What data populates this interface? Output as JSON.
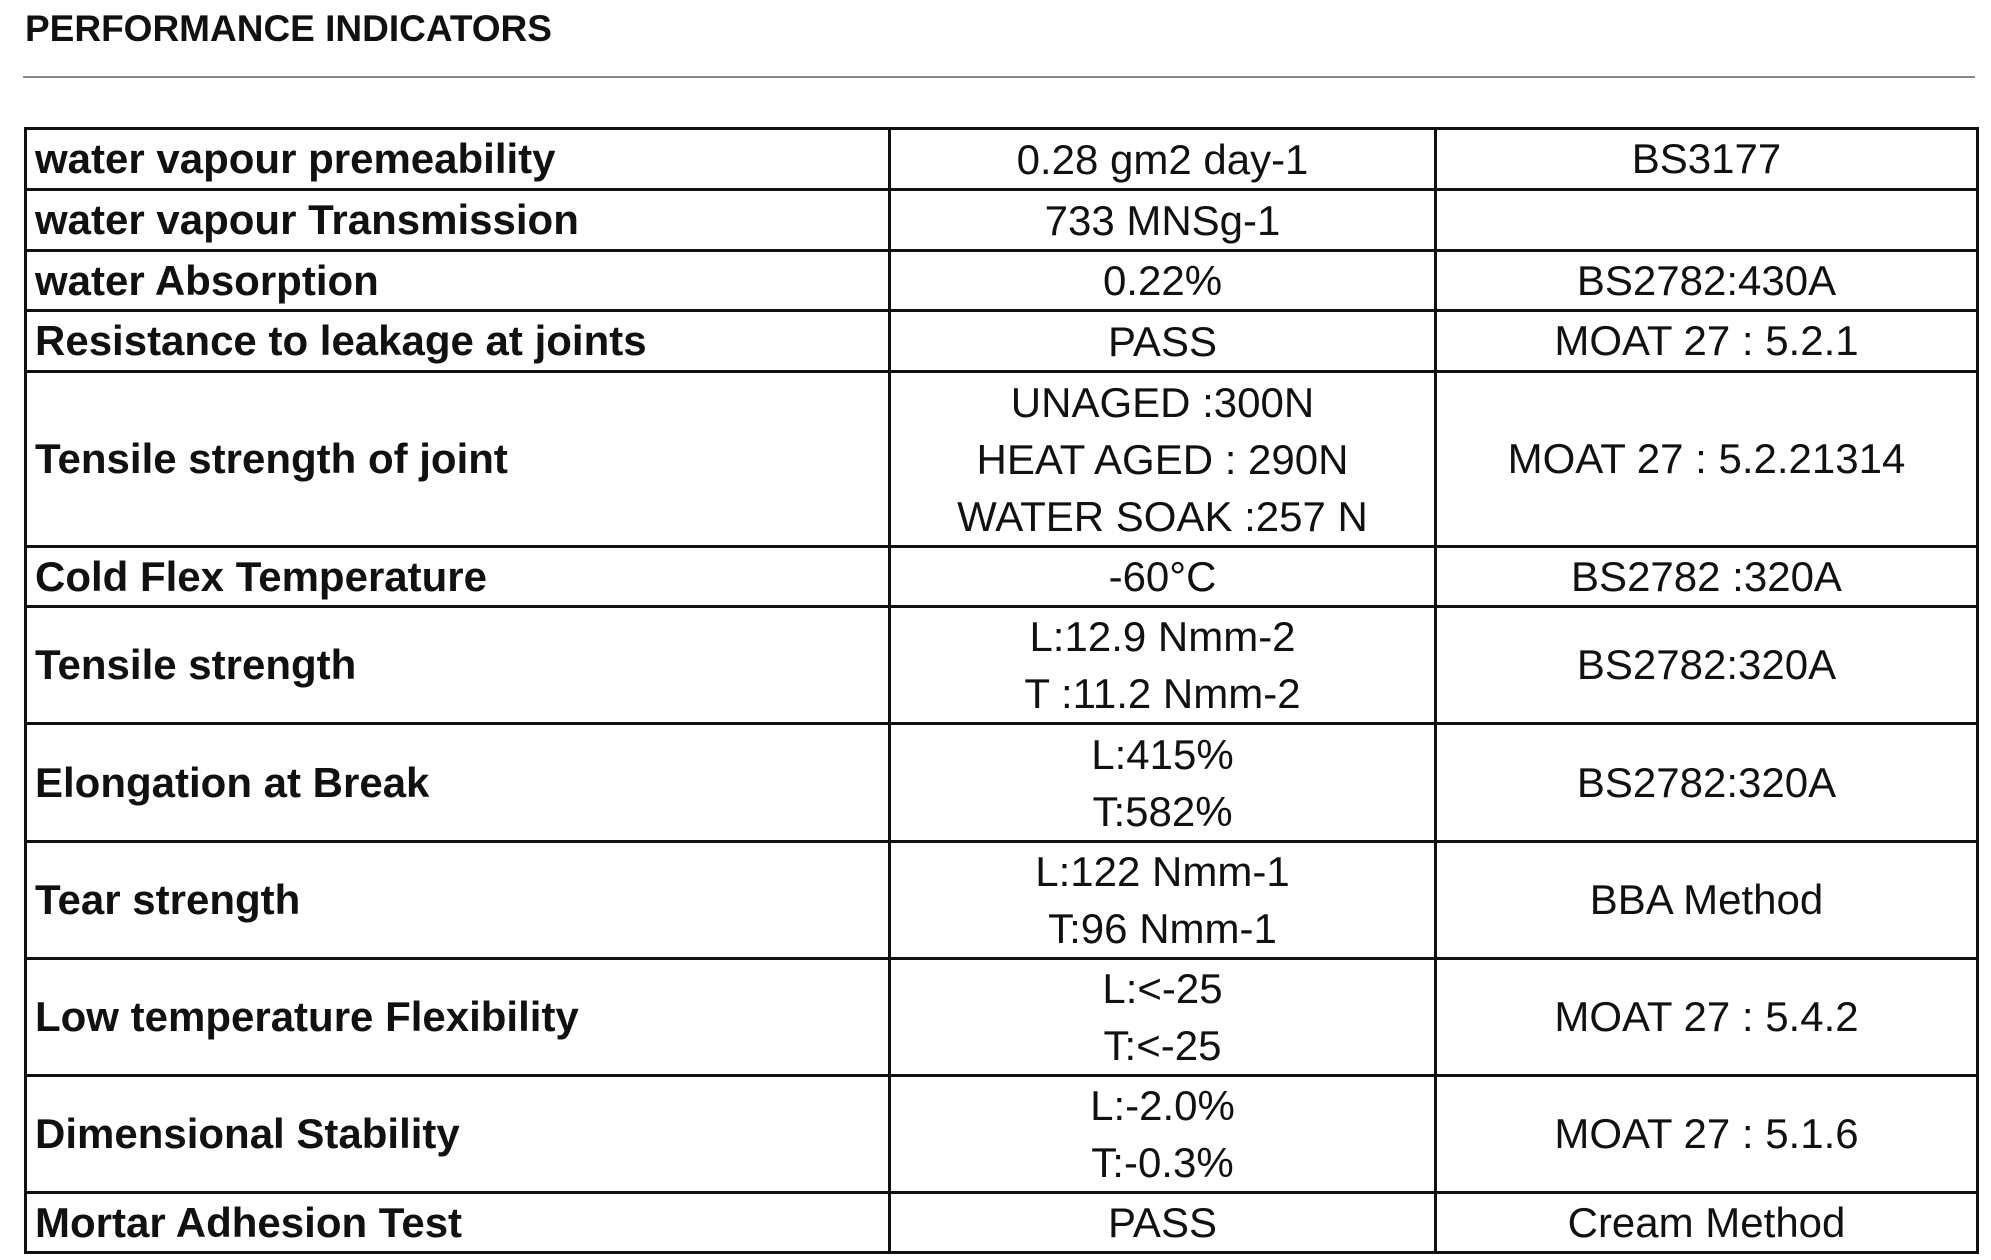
{
  "title": "PERFORMANCE INDICATORS",
  "table": {
    "rows": [
      [
        "water vapour premeability",
        [
          "0.28 gm2 day-1"
        ],
        "BS3177"
      ],
      [
        "water vapour Transmission",
        [
          "733 MNSg-1"
        ]
      ],
      [
        "water Absorption",
        [
          "0.22%"
        ],
        "BS2782:430A"
      ],
      [
        "Resistance to leakage at joints",
        [
          "PASS"
        ],
        "MOAT 27 : 5.2.1"
      ],
      [
        "Tensile strength of joint",
        [
          "UNAGED :300N",
          "HEAT AGED : 290N",
          "WATER SOAK :257 N"
        ],
        "MOAT 27 : 5.2.21314"
      ],
      [
        "Cold Flex Temperature",
        [
          "-60°C"
        ],
        "BS2782 :320A"
      ],
      [
        "Tensile strength",
        [
          "L:12.9 Nmm-2",
          "T :11.2 Nmm-2"
        ],
        "BS2782:320A"
      ],
      [
        "Elongation at Break",
        [
          "L:415%",
          "T:582%"
        ],
        "BS2782:320A"
      ],
      [
        "Tear strength",
        [
          "L:122 Nmm-1",
          "T:96 Nmm-1"
        ],
        "BBA Method"
      ],
      [
        "Low temperature Flexibility",
        [
          "L:<-25",
          "T:<-25"
        ],
        "MOAT 27 : 5.4.2"
      ],
      [
        "Dimensional Stability",
        [
          "L:-2.0%",
          "T:-0.3%"
        ],
        "MOAT 27 : 5.1.6"
      ],
      [
        "Mortar Adhesion Test",
        [
          "PASS"
        ],
        "Cream Method"
      ]
    ]
  }
}
